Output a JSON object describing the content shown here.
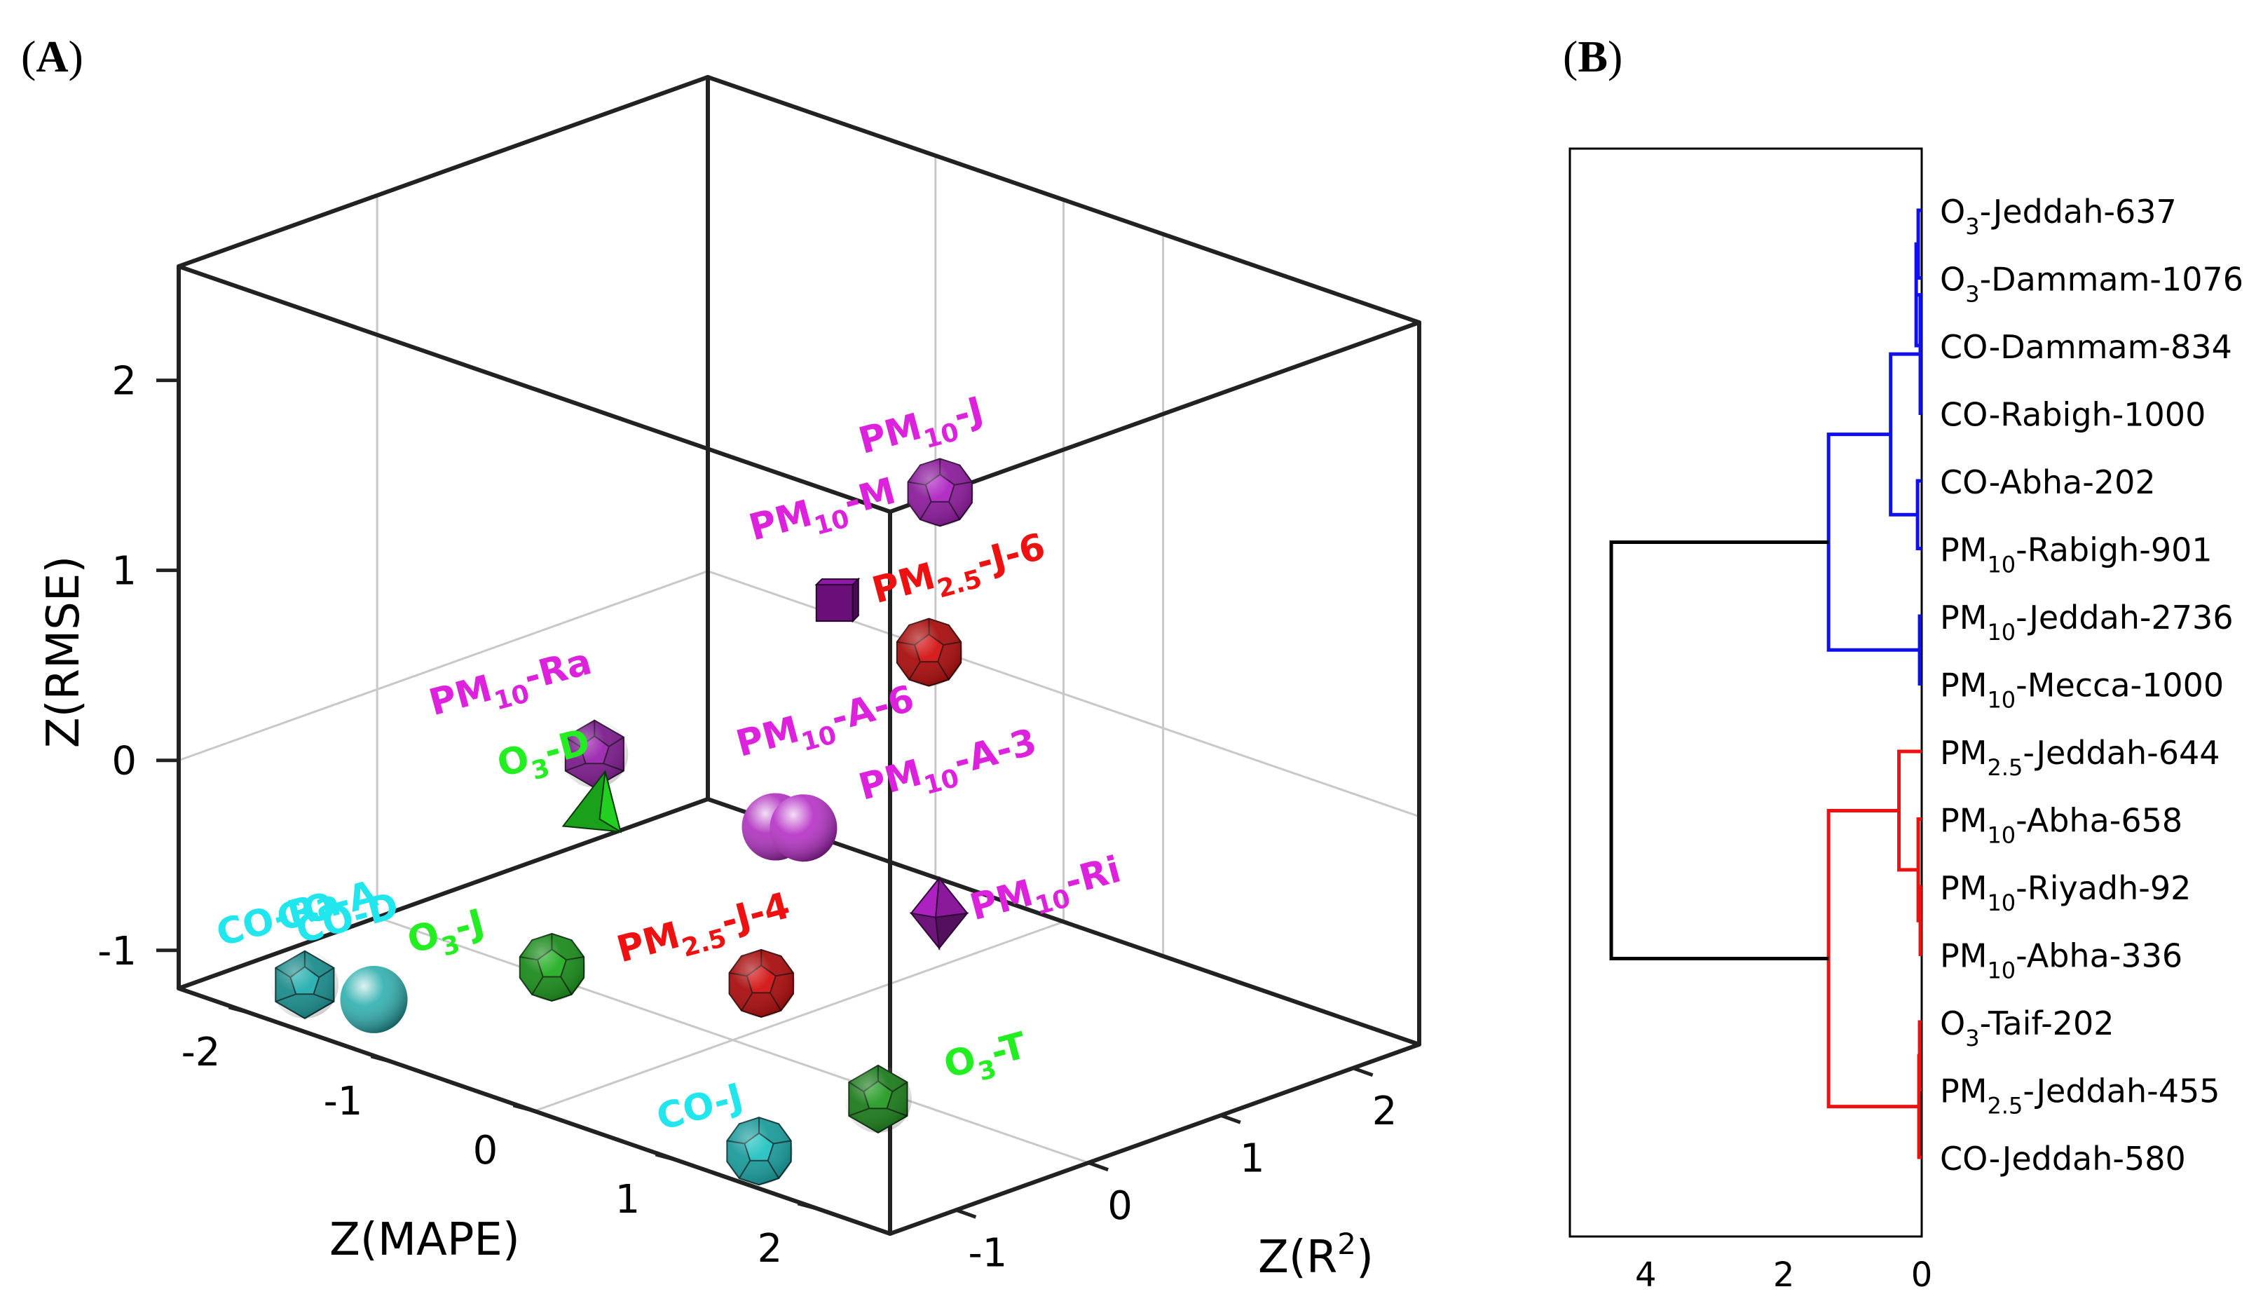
{
  "chart_data": [
    {
      "panel": "(A)",
      "panel_letter": "A",
      "type": "scatter",
      "subtype": "3d",
      "xlabel": "Z(MAPE)",
      "ylabel": "Z(R",
      "ylabel_sup": "2",
      "ylabel_tail": ")",
      "zlabel": "Z(RMSE)",
      "xlim": [
        -2.5,
        2.5
      ],
      "ylim": [
        -1.5,
        2.5
      ],
      "zlim": [
        -1.2,
        2.6
      ],
      "x_ticks": [
        -2,
        -1,
        0,
        1,
        2
      ],
      "y_ticks": [
        -1,
        0,
        1,
        2
      ],
      "z_ticks": [
        -1,
        0,
        1,
        2
      ],
      "x_tick_labels": [
        "-2",
        "-1",
        "0",
        "1",
        "2"
      ],
      "y_tick_labels": [
        "-1",
        "0",
        "1",
        "2"
      ],
      "z_tick_labels": [
        "-1",
        "0",
        "1",
        "2"
      ],
      "grid": true,
      "points": [
        {
          "id": "pm10-j",
          "base": "PM",
          "sub": "10",
          "tail": "-J",
          "color": "#dd22dd",
          "marker": "dodecahedron",
          "fill": "#8a1a9a",
          "x": 2.2,
          "y": -0.8,
          "z": 2.45
        },
        {
          "id": "pm10-m",
          "base": "PM",
          "sub": "10",
          "tail": "-M",
          "color": "#dd22dd",
          "marker": "cube",
          "fill": "#6a0f7a",
          "x": 1.2,
          "y": -0.5,
          "z": 1.55
        },
        {
          "id": "pm25-j-6",
          "base": "PM",
          "sub": "2.5",
          "tail": "-J-6",
          "color": "#ee1111",
          "marker": "dodecahedron",
          "fill": "#a80c0c",
          "x": 1.1,
          "y": 0.3,
          "z": 1.05
        },
        {
          "id": "pm10-ra",
          "base": "PM",
          "sub": "10",
          "tail": "-Ra",
          "color": "#dd22dd",
          "marker": "icosahedron",
          "fill": "#7a1a8a",
          "x": -0.6,
          "y": -0.4,
          "z": 0.25
        },
        {
          "id": "pm10-a-6",
          "base": "PM",
          "sub": "10",
          "tail": "-A-6",
          "color": "#dd22dd",
          "marker": "sphere",
          "fill": "#aa22bb",
          "x": 0.3,
          "y": 0.0,
          "z": 0.0
        },
        {
          "id": "pm10-a-3",
          "base": "PM",
          "sub": "10",
          "tail": "-A-3",
          "color": "#dd22dd",
          "marker": "sphere",
          "fill": "#b122c2",
          "x": 0.45,
          "y": 0.05,
          "z": 0.02
        },
        {
          "id": "pm10-ri",
          "base": "PM",
          "sub": "10",
          "tail": "-Ri",
          "color": "#dd22dd",
          "marker": "octahedron",
          "fill": "#8a1a9a",
          "x": 0.8,
          "y": 0.7,
          "z": -0.5
        },
        {
          "id": "o3-d",
          "base": "O",
          "sub": "3",
          "tail": "-D",
          "color": "#22ee22",
          "marker": "tetrahedron",
          "fill": "#1aa01a",
          "x": -0.8,
          "y": -0.2,
          "z": -0.12
        },
        {
          "id": "o3-j",
          "base": "O",
          "sub": "3",
          "tail": "-J",
          "color": "#22ee22",
          "marker": "dodecahedron",
          "fill": "#1a8a1a",
          "x": -0.9,
          "y": -0.4,
          "z": -0.95
        },
        {
          "id": "pm25-j-4",
          "base": "PM",
          "sub": "2.5",
          "tail": "-J-4",
          "color": "#ee1111",
          "marker": "dodecahedron",
          "fill": "#a80c0c",
          "x": 0.2,
          "y": 0.0,
          "z": -0.85
        },
        {
          "id": "o3-t",
          "base": "O",
          "sub": "3",
          "tail": "-T",
          "color": "#22ee22",
          "marker": "rhombic",
          "fill": "#1a7a1a",
          "x": 1.3,
          "y": -0.3,
          "z": -1.1
        },
        {
          "id": "co-ra",
          "base": "CO-Ra",
          "sub": "",
          "tail": "",
          "color": "#22e6ee",
          "marker": "icosahedron",
          "fill": "#1a8a8a",
          "x": -1.8,
          "y": -1.3,
          "z": -1.05
        },
        {
          "id": "co-d",
          "base": "CO-D",
          "sub": "",
          "tail": "",
          "color": "#22e6ee",
          "marker": "sphere",
          "fill": "#22aaaa",
          "x": -1.5,
          "y": -1.1,
          "z": -1.1
        },
        {
          "id": "co-a",
          "base": "CO-A",
          "sub": "",
          "tail": "",
          "color": "#22e6ee",
          "marker": "none",
          "fill": "#22aaaa",
          "x": -1.2,
          "y": -0.8,
          "z": -0.7
        },
        {
          "id": "co-j",
          "base": "CO-J",
          "sub": "",
          "tail": "",
          "color": "#22e6ee",
          "marker": "dodecahedron",
          "fill": "#1a9a9a",
          "x": 1.3,
          "y": -1.2,
          "z": -1.15
        }
      ]
    },
    {
      "panel": "(B)",
      "panel_letter": "B",
      "type": "dendrogram",
      "x_ticks": [
        4,
        2,
        0
      ],
      "x_tick_labels": [
        "4",
        "2",
        "0"
      ],
      "xlim": [
        5.1,
        0
      ],
      "leaves": [
        {
          "base": "O",
          "sub": "3",
          "tail": "-Jeddah-637"
        },
        {
          "base": "O",
          "sub": "3",
          "tail": "-Dammam-1076"
        },
        {
          "base": "CO-Dammam-834",
          "sub": "",
          "tail": ""
        },
        {
          "base": "CO-Rabigh-1000",
          "sub": "",
          "tail": ""
        },
        {
          "base": "CO-Abha-202",
          "sub": "",
          "tail": ""
        },
        {
          "base": "PM",
          "sub": "10",
          "tail": "-Rabigh-901"
        },
        {
          "base": "PM",
          "sub": "10",
          "tail": "-Jeddah-2736"
        },
        {
          "base": "PM",
          "sub": "10",
          "tail": "-Mecca-1000"
        },
        {
          "base": "PM",
          "sub": "2.5",
          "tail": "-Jeddah-644"
        },
        {
          "base": "PM",
          "sub": "10",
          "tail": "-Abha-658"
        },
        {
          "base": "PM",
          "sub": "10",
          "tail": "-Riyadh-92"
        },
        {
          "base": "PM",
          "sub": "10",
          "tail": "-Abha-336"
        },
        {
          "base": "O",
          "sub": "3",
          "tail": "-Taif-202"
        },
        {
          "base": "PM",
          "sub": "2.5",
          "tail": "-Jeddah-455"
        },
        {
          "base": "CO-Jeddah-580",
          "sub": "",
          "tail": ""
        }
      ],
      "links": [
        {
          "a": 0,
          "b": 1,
          "h": 0.05,
          "color": "#1010ee"
        },
        {
          "a": 15,
          "b": 2,
          "h": 0.08,
          "color": "#1010ee"
        },
        {
          "a": 16,
          "b": 3,
          "h": 0.02,
          "color": "#1010ee"
        },
        {
          "a": 4,
          "b": 5,
          "h": 0.06,
          "color": "#1010ee"
        },
        {
          "a": 17,
          "b": 18,
          "h": 0.45,
          "color": "#1010ee"
        },
        {
          "a": 6,
          "b": 7,
          "h": 0.03,
          "color": "#1010ee"
        },
        {
          "a": 19,
          "b": 20,
          "h": 1.35,
          "color": "#1010ee"
        },
        {
          "a": 10,
          "b": 11,
          "h": 0.02,
          "color": "#ee1111"
        },
        {
          "a": 9,
          "b": 22,
          "h": 0.05,
          "color": "#ee1111"
        },
        {
          "a": 8,
          "b": 23,
          "h": 0.33,
          "color": "#ee1111"
        },
        {
          "a": 12,
          "b": 13,
          "h": 0.03,
          "color": "#ee1111"
        },
        {
          "a": 25,
          "b": 14,
          "h": 0.04,
          "color": "#ee1111"
        },
        {
          "a": 24,
          "b": 26,
          "h": 1.35,
          "color": "#ee1111"
        },
        {
          "a": 21,
          "b": 27,
          "h": 4.5,
          "color": "#000000"
        }
      ]
    }
  ]
}
